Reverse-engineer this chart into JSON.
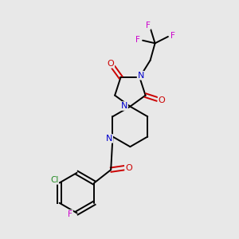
{
  "background_color": "#e8e8e8",
  "atom_colors": {
    "C": "#000000",
    "N": "#0000cc",
    "O": "#cc0000",
    "F": "#cc00cc",
    "Cl": "#228B22"
  },
  "figsize": [
    3.0,
    3.0
  ],
  "dpi": 100
}
